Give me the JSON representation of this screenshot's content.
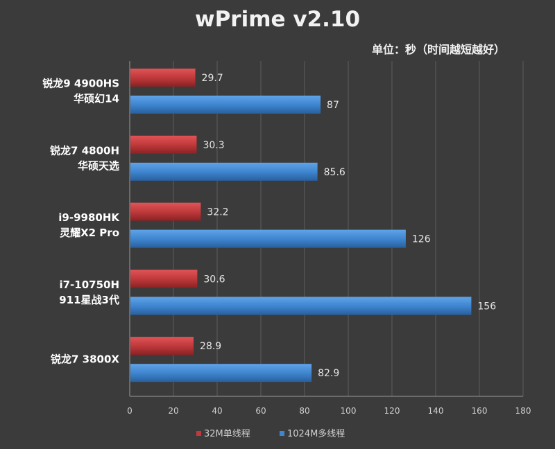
{
  "chart_data": {
    "type": "bar",
    "orientation": "horizontal",
    "title": "wPrime v2.10",
    "subtitle": "单位：秒（时间越短越好）",
    "categories": [
      [
        "锐龙9 4900HS",
        "华硕幻14"
      ],
      [
        "锐龙7 4800H",
        "华硕天选"
      ],
      [
        "i9-9980HK",
        "灵耀X2 Pro"
      ],
      [
        "i7-10750H",
        "911星战3代"
      ],
      [
        "锐龙7 3800X"
      ]
    ],
    "series": [
      {
        "name": "32M单线程",
        "color": "#c0393b",
        "values": [
          29.7,
          30.3,
          32.2,
          30.6,
          28.9
        ]
      },
      {
        "name": "1024M多线程",
        "color": "#3f86d0",
        "values": [
          87,
          85.6,
          126,
          156,
          82.9
        ]
      }
    ],
    "xlim": [
      0,
      180
    ],
    "xticks": [
      0,
      20,
      40,
      60,
      80,
      100,
      120,
      140,
      160,
      180
    ],
    "grid": true,
    "legend": "bottom"
  }
}
